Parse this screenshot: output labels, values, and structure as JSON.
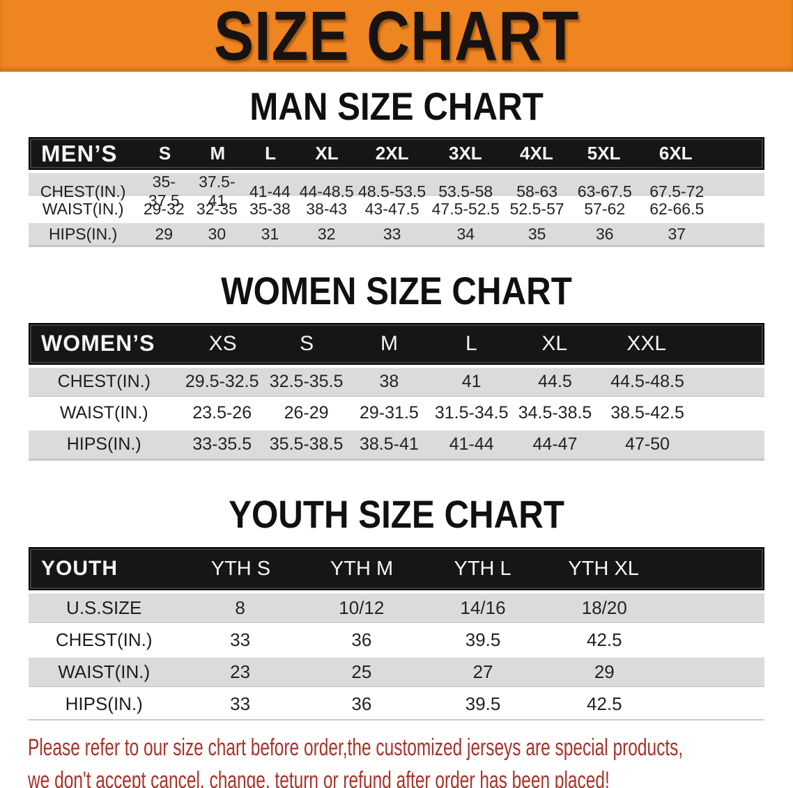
{
  "banner": {
    "title": "SIZE CHART",
    "bg_color": "#EE8520",
    "text_color": "#181310"
  },
  "chart_data": [
    {
      "type": "table",
      "title": "MAN SIZE CHART",
      "columns": [
        "MEN’S",
        "S",
        "M",
        "L",
        "XL",
        "2XL",
        "3XL",
        "4XL",
        "5XL",
        "6XL"
      ],
      "rows": [
        [
          "CHEST(IN.)",
          "35-37.5",
          "37.5-41",
          "41-44",
          "44-48.5",
          "48.5-53.5",
          "53.5-58",
          "58-63",
          "63-67.5",
          "67.5-72"
        ],
        [
          "WAIST(IN.)",
          "29-32",
          "32-35",
          "35-38",
          "38-43",
          "43-47.5",
          "47.5-52.5",
          "52.5-57",
          "57-62",
          "62-66.5"
        ],
        [
          "HIPS(IN.)",
          "29",
          "30",
          "31",
          "32",
          "33",
          "34",
          "35",
          "36",
          "37"
        ]
      ]
    },
    {
      "type": "table",
      "title": "WOMEN SIZE CHART",
      "columns": [
        "WOMEN’S",
        "XS",
        "S",
        "M",
        "L",
        "XL",
        "XXL"
      ],
      "rows": [
        [
          "CHEST(IN.)",
          "29.5-32.5",
          "32.5-35.5",
          "38",
          "41",
          "44.5",
          "44.5-48.5"
        ],
        [
          "WAIST(IN.)",
          "23.5-26",
          "26-29",
          "29-31.5",
          "31.5-34.5",
          "34.5-38.5",
          "38.5-42.5"
        ],
        [
          "HIPS(IN.)",
          "33-35.5",
          "35.5-38.5",
          "38.5-41",
          "41-44",
          "44-47",
          "47-50"
        ]
      ]
    },
    {
      "type": "table",
      "title": "YOUTH SIZE CHART",
      "columns": [
        "YOUTH",
        "YTH S",
        "YTH M",
        "YTH L",
        "YTH XL"
      ],
      "rows": [
        [
          "U.S.SIZE",
          "8",
          "10/12",
          "14/16",
          "18/20"
        ],
        [
          "CHEST(IN.)",
          "33",
          "36",
          "39.5",
          "42.5"
        ],
        [
          "WAIST(IN.)",
          "23",
          "25",
          "27",
          "29"
        ],
        [
          "HIPS(IN.)",
          "33",
          "36",
          "39.5",
          "42.5"
        ]
      ]
    }
  ],
  "disclaimer": {
    "line1": "Please refer to our size chart before order,the customized jerseys are special products,",
    "line2": "we don't accept cancel, change, teturn or refund after order has been placed!",
    "text_color": "#A83229"
  }
}
